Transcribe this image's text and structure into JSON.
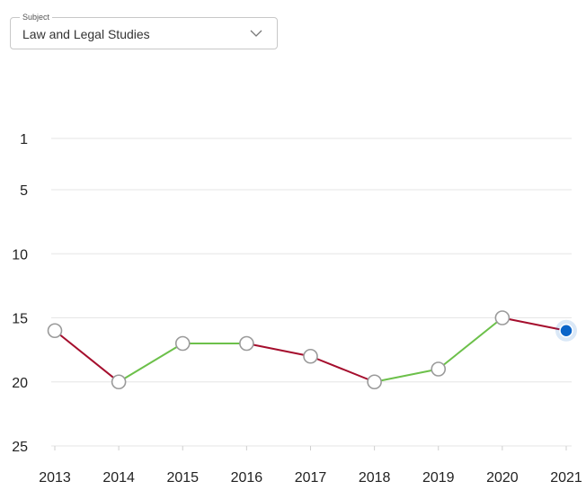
{
  "subject_select": {
    "legend": "Subject",
    "value": "Law and Legal Studies"
  },
  "chart_data": {
    "type": "line",
    "x": [
      "2013",
      "2014",
      "2015",
      "2016",
      "2017",
      "2018",
      "2019",
      "2020",
      "2021"
    ],
    "series": [
      {
        "values": [
          16,
          20,
          17,
          17,
          18,
          20,
          19,
          15,
          16
        ]
      }
    ],
    "yticks": [
      1,
      5,
      10,
      15,
      20,
      25
    ],
    "ylim": [
      1,
      25
    ],
    "y_inverted": true,
    "grid": true,
    "colors": {
      "improve": "#6cc04a",
      "decline": "#a50e2d",
      "point_fill": "#ffffff",
      "point_stroke": "#9a9a9a",
      "current_point": "#0a64c8",
      "grid": "#e6e6e6"
    }
  }
}
